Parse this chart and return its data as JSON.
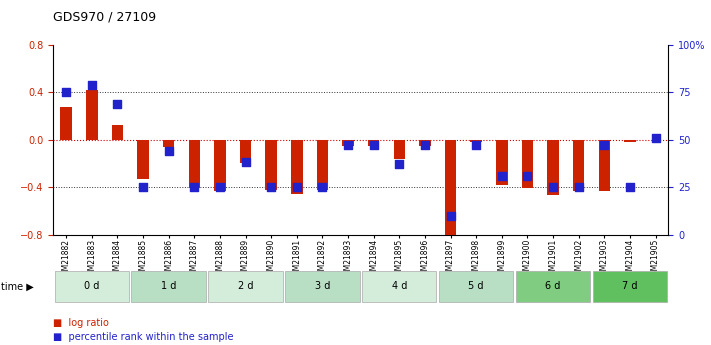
{
  "title": "GDS970 / 27109",
  "samples": [
    "GSM21882",
    "GSM21883",
    "GSM21884",
    "GSM21885",
    "GSM21886",
    "GSM21887",
    "GSM21888",
    "GSM21889",
    "GSM21890",
    "GSM21891",
    "GSM21892",
    "GSM21893",
    "GSM21894",
    "GSM21895",
    "GSM21896",
    "GSM21897",
    "GSM21898",
    "GSM21899",
    "GSM21900",
    "GSM21901",
    "GSM21902",
    "GSM21903",
    "GSM21904",
    "GSM21905"
  ],
  "log_ratio": [
    0.28,
    0.42,
    0.12,
    -0.33,
    -0.06,
    -0.41,
    -0.43,
    -0.2,
    -0.42,
    -0.46,
    -0.42,
    -0.05,
    -0.05,
    -0.16,
    -0.05,
    -0.85,
    -0.02,
    -0.38,
    -0.41,
    -0.47,
    -0.43,
    -0.43,
    -0.02,
    0.0
  ],
  "pct_raw": [
    75,
    79,
    69,
    25,
    44,
    25,
    25,
    38,
    25,
    25,
    25,
    47,
    47,
    37,
    47,
    10,
    47,
    31,
    31,
    25,
    25,
    47,
    25,
    51
  ],
  "time_groups": [
    {
      "label": "0 d",
      "start": 0,
      "end": 3,
      "color": "#d4edda"
    },
    {
      "label": "1 d",
      "start": 3,
      "end": 6,
      "color": "#b8dfc4"
    },
    {
      "label": "2 d",
      "start": 6,
      "end": 9,
      "color": "#d4edda"
    },
    {
      "label": "3 d",
      "start": 9,
      "end": 12,
      "color": "#b8dfc4"
    },
    {
      "label": "4 d",
      "start": 12,
      "end": 15,
      "color": "#d4edda"
    },
    {
      "label": "5 d",
      "start": 15,
      "end": 18,
      "color": "#b8dfc4"
    },
    {
      "label": "6 d",
      "start": 18,
      "end": 21,
      "color": "#80cc80"
    },
    {
      "label": "7 d",
      "start": 21,
      "end": 24,
      "color": "#60c060"
    }
  ],
  "ylim": [
    -0.8,
    0.8
  ],
  "y2lim": [
    0,
    100
  ],
  "yticks": [
    -0.8,
    -0.4,
    0.0,
    0.4,
    0.8
  ],
  "y2ticks": [
    0,
    25,
    50,
    75,
    100
  ],
  "bar_color": "#cc2200",
  "dot_color": "#2222cc",
  "background_color": "#ffffff",
  "legend_log": "log ratio",
  "legend_pct": "percentile rank within the sample",
  "dotted_line_color": "#333333",
  "zero_line_color": "#cc0000"
}
